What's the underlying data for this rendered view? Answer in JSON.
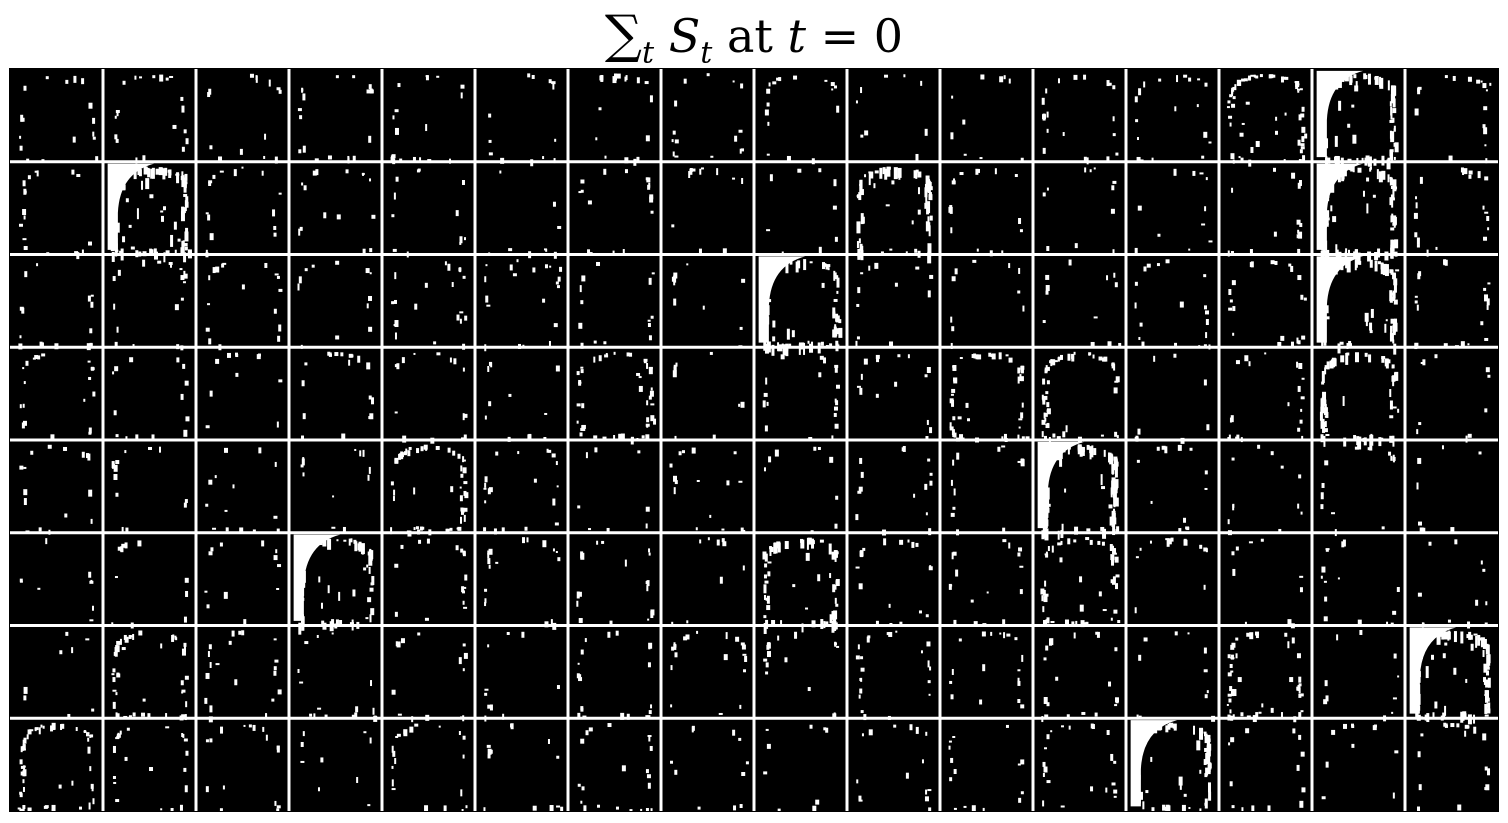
{
  "title": {
    "sum": "∑",
    "sub": "t",
    "var": "S",
    "var_sub": "t",
    "at": "at",
    "t": "t",
    "eq": "=",
    "zero": "0"
  },
  "grid": {
    "rows": 8,
    "cols": 16,
    "background": "#000000",
    "line_color": "#ffffff",
    "mark_color": "#ffffff"
  },
  "bright_tiles": [
    {
      "row": 0,
      "col": 13,
      "strength": 0.45
    },
    {
      "row": 0,
      "col": 14,
      "strength": 0.9
    },
    {
      "row": 1,
      "col": 1,
      "strength": 1.0
    },
    {
      "row": 1,
      "col": 9,
      "strength": 0.6
    },
    {
      "row": 1,
      "col": 14,
      "strength": 1.0
    },
    {
      "row": 2,
      "col": 8,
      "strength": 0.8
    },
    {
      "row": 2,
      "col": 14,
      "strength": 0.9
    },
    {
      "row": 3,
      "col": 6,
      "strength": 0.35
    },
    {
      "row": 3,
      "col": 10,
      "strength": 0.45
    },
    {
      "row": 3,
      "col": 11,
      "strength": 0.5
    },
    {
      "row": 3,
      "col": 14,
      "strength": 0.55
    },
    {
      "row": 4,
      "col": 4,
      "strength": 0.45
    },
    {
      "row": 4,
      "col": 11,
      "strength": 1.0
    },
    {
      "row": 5,
      "col": 3,
      "strength": 0.8
    },
    {
      "row": 5,
      "col": 8,
      "strength": 0.6
    },
    {
      "row": 5,
      "col": 11,
      "strength": 0.45
    },
    {
      "row": 6,
      "col": 1,
      "strength": 0.35
    },
    {
      "row": 6,
      "col": 13,
      "strength": 0.35
    },
    {
      "row": 6,
      "col": 15,
      "strength": 1.0
    },
    {
      "row": 7,
      "col": 0,
      "strength": 0.45
    },
    {
      "row": 7,
      "col": 12,
      "strength": 0.8
    }
  ]
}
